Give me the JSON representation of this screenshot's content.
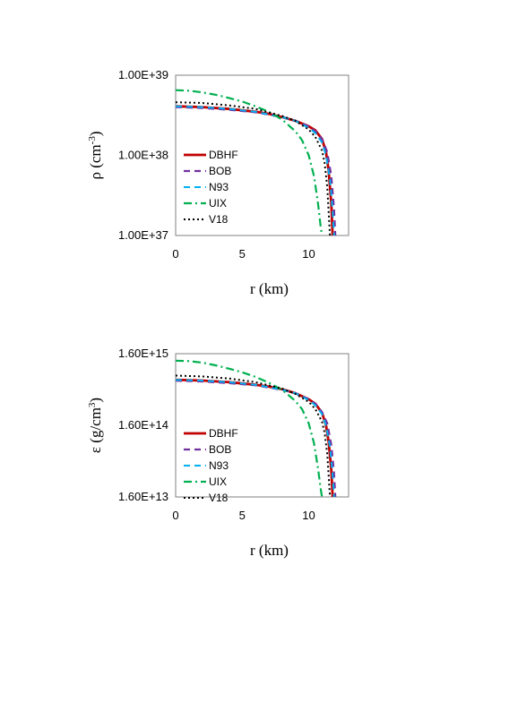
{
  "colors": {
    "DBHF": "#c00000",
    "BOB": "#7030a0",
    "N93": "#00b0f0",
    "UIX": "#00b050",
    "V18": "#000000"
  },
  "chart_data": [
    {
      "type": "line",
      "title": "",
      "xlabel": "r (km)",
      "ylabel": "ρ (cm⁻³)",
      "y_scale": "log",
      "xlim": [
        0,
        13
      ],
      "ylim": [
        1e+37,
        1e+39
      ],
      "x_ticks": [
        {
          "value": 0,
          "label": "0"
        },
        {
          "value": 5,
          "label": "5"
        },
        {
          "value": 10,
          "label": "10"
        }
      ],
      "y_ticks": [
        {
          "value": 1e+39,
          "label": "1.00E+39"
        },
        {
          "value": 1e+38,
          "label": "1.00E+38"
        },
        {
          "value": 1e+37,
          "label": "1.00E+37"
        }
      ],
      "legend_position": "left",
      "series": [
        {
          "name": "DBHF",
          "style": "solid",
          "x": [
            0,
            2,
            4,
            6,
            7,
            8,
            9,
            10,
            10.5,
            11,
            11.3,
            11.5,
            11.7,
            11.8
          ],
          "y": [
            4.1e+38,
            4e+38,
            3.8e+38,
            3.5e+38,
            3.3e+38,
            3e+38,
            2.7e+38,
            2.3e+38,
            2.05e+38,
            1.6e+38,
            1.1e+38,
            6.5e+37,
            2.5e+37,
            1e+37
          ]
        },
        {
          "name": "BOB",
          "style": "dashed",
          "x": [
            0,
            2,
            4,
            6,
            8,
            9,
            10,
            10.5,
            11,
            11.4,
            11.7,
            11.9,
            12.0
          ],
          "y": [
            4e+38,
            3.9e+38,
            3.7e+38,
            3.45e+38,
            3e+38,
            2.7e+38,
            2.3e+38,
            2e+38,
            1.6e+38,
            1.1e+38,
            5.5e+37,
            2.2e+37,
            1e+37
          ]
        },
        {
          "name": "N93",
          "style": "dashed",
          "x": [
            0,
            2,
            4,
            6,
            8,
            9,
            10,
            10.5,
            11,
            11.3,
            11.6,
            11.8,
            11.9
          ],
          "y": [
            4.1e+38,
            4e+38,
            3.8e+38,
            3.5e+38,
            3e+38,
            2.7e+38,
            2.2e+38,
            1.9e+38,
            1.45e+38,
            1e+38,
            5e+37,
            2e+37,
            1e+37
          ]
        },
        {
          "name": "UIX",
          "style": "dashdot",
          "x": [
            0,
            1,
            2,
            3,
            4,
            5,
            6,
            7,
            8,
            9,
            9.5,
            10,
            10.4,
            10.7,
            10.9,
            11.0
          ],
          "y": [
            6.5e+38,
            6.4e+38,
            6.1e+38,
            5.7e+38,
            5.2e+38,
            4.7e+38,
            4.1e+38,
            3.5e+38,
            2.8e+38,
            2e+38,
            1.55e+38,
            1e+38,
            5.5e+37,
            2.5e+37,
            1.3e+37,
            1e+37
          ]
        },
        {
          "name": "V18",
          "style": "dotted",
          "x": [
            0,
            2,
            4,
            6,
            8,
            9,
            10,
            10.5,
            11,
            11.2,
            11.4,
            11.5,
            11.6
          ],
          "y": [
            4.6e+38,
            4.5e+38,
            4.2e+38,
            3.8e+38,
            3.1e+38,
            2.7e+38,
            2.1e+38,
            1.7e+38,
            1.15e+38,
            8e+37,
            4e+37,
            2e+37,
            1e+37
          ]
        }
      ]
    },
    {
      "type": "line",
      "title": "",
      "xlabel": "r (km)",
      "ylabel": "ε (g/cm³)",
      "y_scale": "log",
      "xlim": [
        0,
        13
      ],
      "ylim": [
        16000000000000.0,
        1600000000000000.0
      ],
      "x_ticks": [
        {
          "value": 0,
          "label": "0"
        },
        {
          "value": 5,
          "label": "5"
        },
        {
          "value": 10,
          "label": "10"
        }
      ],
      "y_ticks": [
        {
          "value": 1600000000000000.0,
          "label": "1.60E+15"
        },
        {
          "value": 160000000000000.0,
          "label": "1.60E+14"
        },
        {
          "value": 16000000000000.0,
          "label": "1.60E+13"
        }
      ],
      "legend_position": "left",
      "series": [
        {
          "name": "DBHF",
          "style": "solid",
          "x": [
            0,
            2,
            4,
            6,
            7,
            8,
            9,
            10,
            10.5,
            11,
            11.3,
            11.5,
            11.7,
            11.8
          ],
          "y": [
            690000000000000.0,
            675000000000000.0,
            640000000000000.0,
            590000000000000.0,
            555000000000000.0,
            510000000000000.0,
            450000000000000.0,
            370000000000000.0,
            320000000000000.0,
            240000000000000.0,
            160000000000000.0,
            95000000000000.0,
            38000000000000.0,
            16000000000000.0
          ]
        },
        {
          "name": "BOB",
          "style": "dashed",
          "x": [
            0,
            2,
            4,
            6,
            8,
            9,
            10,
            10.5,
            11,
            11.4,
            11.7,
            11.9,
            12.0
          ],
          "y": [
            670000000000000.0,
            655000000000000.0,
            620000000000000.0,
            580000000000000.0,
            500000000000000.0,
            450000000000000.0,
            370000000000000.0,
            320000000000000.0,
            245000000000000.0,
            170000000000000.0,
            85000000000000.0,
            35000000000000.0,
            16000000000000.0
          ]
        },
        {
          "name": "N93",
          "style": "dashed",
          "x": [
            0,
            2,
            4,
            6,
            8,
            9,
            10,
            10.5,
            11,
            11.3,
            11.6,
            11.8,
            11.9
          ],
          "y": [
            690000000000000.0,
            675000000000000.0,
            640000000000000.0,
            590000000000000.0,
            505000000000000.0,
            450000000000000.0,
            360000000000000.0,
            305000000000000.0,
            230000000000000.0,
            160000000000000.0,
            80000000000000.0,
            32000000000000.0,
            16000000000000.0
          ]
        },
        {
          "name": "UIX",
          "style": "dashdot",
          "x": [
            0,
            1,
            2,
            3,
            4,
            5,
            6,
            7,
            8,
            9,
            9.5,
            10,
            10.4,
            10.7,
            10.9,
            11.0
          ],
          "y": [
            1280000000000000.0,
            1260000000000000.0,
            1200000000000000.0,
            1100000000000000.0,
            990000000000000.0,
            880000000000000.0,
            760000000000000.0,
            630000000000000.0,
            500000000000000.0,
            350000000000000.0,
            270000000000000.0,
            170000000000000.0,
            90000000000000.0,
            40000000000000.0,
            21000000000000.0,
            16000000000000.0
          ]
        },
        {
          "name": "V18",
          "style": "dotted",
          "x": [
            0,
            2,
            4,
            6,
            8,
            9,
            10,
            10.5,
            11,
            11.2,
            11.4,
            11.5,
            11.6
          ],
          "y": [
            790000000000000.0,
            770000000000000.0,
            720000000000000.0,
            640000000000000.0,
            520000000000000.0,
            440000000000000.0,
            340000000000000.0,
            270000000000000.0,
            180000000000000.0,
            125000000000000.0,
            63000000000000.0,
            32000000000000.0,
            16000000000000.0
          ]
        }
      ]
    }
  ]
}
